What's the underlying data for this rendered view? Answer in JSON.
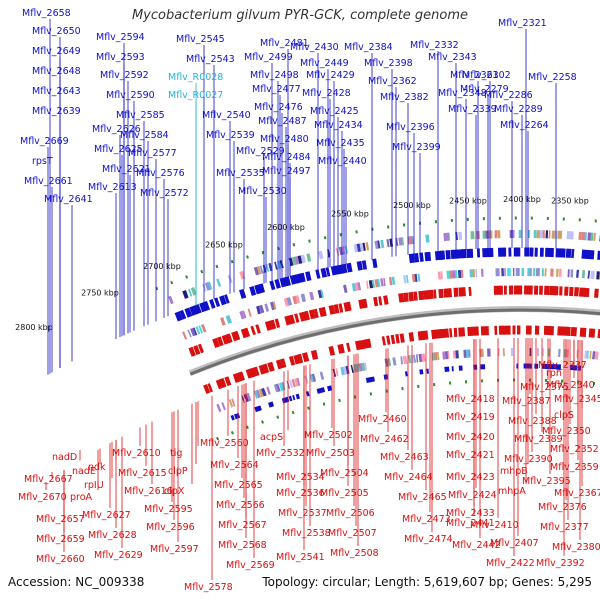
{
  "title": "Mycobacterium gilvum PYR-GCK, complete genome",
  "accession": "Accession: NC_009338",
  "summary": "Topology: circular; Length: 5,619,607 bp; Genes: 5,295",
  "colors": {
    "forward": "#1010c8",
    "reverse": "#d81010",
    "rna": "#22b3d8",
    "backbone": "#808080",
    "tick": "#2e8b2e"
  },
  "scale_labels": [
    "2350 kbp",
    "2400 kbp",
    "2450 kbp",
    "2500 kbp",
    "2550 kbp",
    "2600 kbp",
    "2650 kbp",
    "2700 kbp",
    "2750 kbp",
    "2800 kbp"
  ],
  "forward_genes": [
    "Mflv_2658",
    "Mflv_2650",
    "Mflv_2649",
    "Mflv_2648",
    "Mflv_2643",
    "Mflv_2639",
    "Mflv_2669",
    "rpsT",
    "Mflv_2661",
    "Mflv_2641",
    "Mflv_2626",
    "Mflv_2625",
    "Mflv_2621",
    "Mflv_2613",
    "Mflv_2594",
    "Mflv_2593",
    "Mflv_2592",
    "Mflv_2590",
    "Mflv_2585",
    "Mflv_2584",
    "Mflv_2577",
    "Mflv_2576",
    "Mflv_2572",
    "Mflv_2545",
    "Mflv_2543",
    "Mflv_2540",
    "Mflv_2539",
    "Mflv_2535",
    "Mflv_2529",
    "Mflv_2530",
    "Mflv_2481",
    "Mflv_2499",
    "Mflv_2498",
    "Mflv_2477",
    "Mflv_2476",
    "Mflv_2487",
    "Mflv_2480",
    "Mflv_2484",
    "Mflv_2497",
    "Mflv_2430",
    "Mflv_2449",
    "Mflv_2429",
    "Mflv_2428",
    "Mflv_2425",
    "Mflv_2434",
    "Mflv_2435",
    "Mflv_2440",
    "Mflv_2384",
    "Mflv_2398",
    "Mflv_2362",
    "Mflv_2382",
    "Mflv_2396",
    "Mflv_2399",
    "Mflv_2332",
    "Mflv_2343",
    "Mflv_2361",
    "Mflv_2348",
    "Mflv_2339",
    "Mflv_2279",
    "Mflv_2302",
    "Mflv_2286",
    "Mflv_2289",
    "Mflv_2321",
    "Mflv_2258",
    "Mflv_2264"
  ],
  "rna_genes": [
    "Mflv_R0028",
    "Mflv_R0027"
  ],
  "reverse_genes": [
    "Mflv_2337",
    "rph",
    "Mflv_2340",
    "Mflv_2375",
    "Mflv_2345",
    "Mflv_2387",
    "clpS",
    "Mflv_2418",
    "Mflv_2388",
    "Mflv_2350",
    "Mflv_2419",
    "Mflv_2389",
    "Mflv_2352",
    "Mflv_2420",
    "Mflv_2390",
    "Mflv_2359",
    "Mflv_2421",
    "mhpB",
    "Mflv_2395",
    "Mflv_2423",
    "mhpA",
    "Mflv_2367",
    "Mflv_2424",
    "Mflv_2376",
    "Mflv_2433",
    "Mflv_2410",
    "Mflv_2377",
    "Mflv_2441",
    "Mflv_2407",
    "Mflv_2380",
    "Mflv_2442",
    "Mflv_2422",
    "Mflv_2392",
    "Mflv_2460",
    "Mflv_2462",
    "Mflv_2463",
    "Mflv_2464",
    "Mflv_2465",
    "Mflv_2473",
    "Mflv_2474",
    "Mflv_2502",
    "Mflv_2503",
    "Mflv_2504",
    "Mflv_2505",
    "Mflv_2506",
    "Mflv_2507",
    "Mflv_2508",
    "acpS",
    "Mflv_2532",
    "Mflv_2534",
    "Mflv_2536",
    "Mflv_2537",
    "Mflv_2538",
    "Mflv_2541",
    "Mflv_2560",
    "Mflv_2564",
    "Mflv_2565",
    "Mflv_2566",
    "Mflv_2567",
    "Mflv_2568",
    "Mflv_2569",
    "Mflv_2578",
    "tig",
    "clpP",
    "clpX",
    "Mflv_2595",
    "Mflv_2596",
    "Mflv_2597",
    "Mflv_2610",
    "Mflv_2615",
    "Mflv_2616",
    "ndk",
    "rpIU",
    "Mflv_2627",
    "Mflv_2628",
    "Mflv_2629",
    "nadD",
    "nadE",
    "proA",
    "Mflv_2667",
    "Mflv_2670",
    "Mflv_2657",
    "Mflv_2659",
    "Mflv_2660"
  ]
}
